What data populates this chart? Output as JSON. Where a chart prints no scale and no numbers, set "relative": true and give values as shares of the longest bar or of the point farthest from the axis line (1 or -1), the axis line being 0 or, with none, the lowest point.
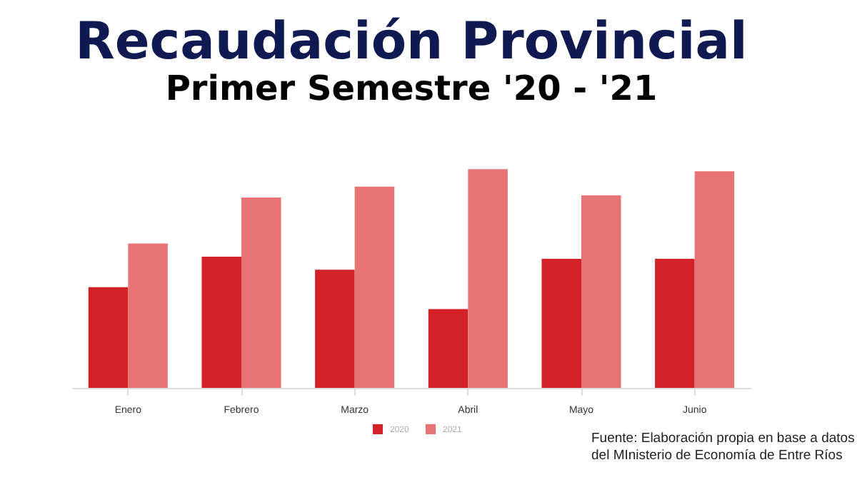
{
  "chart_data": {
    "type": "bar",
    "title": "Recaudación Provincial",
    "subtitle": "Primer Semestre '20 - '21",
    "categories": [
      "Enero",
      "Febrero",
      "Marzo",
      "Abril",
      "Mayo",
      "Junio"
    ],
    "series": [
      {
        "name": "2020",
        "color": "#d42027",
        "values": [
          0.46,
          0.6,
          0.54,
          0.36,
          0.59,
          0.59
        ]
      },
      {
        "name": "2021",
        "color": "#e87374",
        "values": [
          0.66,
          0.87,
          0.92,
          1,
          0.88,
          0.99
        ]
      }
    ],
    "relative": true,
    "legend": "bottom",
    "annotations": [
      "Fuente: Elaboración propia en base a datos del MInisterio de Economía de Entre Ríos"
    ]
  }
}
